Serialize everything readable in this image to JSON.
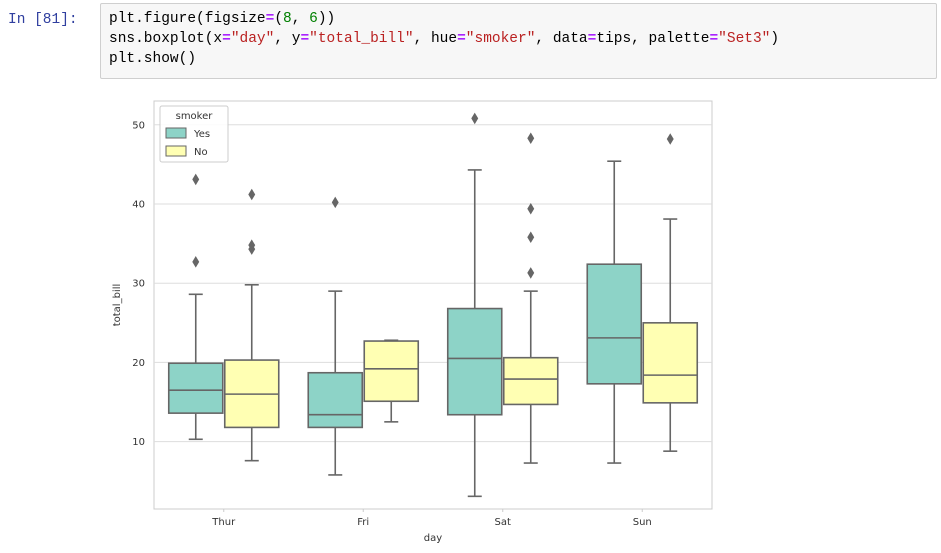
{
  "cell": {
    "prompt": "In [81]:",
    "lines": [
      [
        {
          "t": "plt.figure(figsize",
          "c": "var"
        },
        {
          "t": "=",
          "c": "op"
        },
        {
          "t": "(",
          "c": "punc"
        },
        {
          "t": "8",
          "c": "num"
        },
        {
          "t": ", ",
          "c": "punc"
        },
        {
          "t": "6",
          "c": "num"
        },
        {
          "t": "))",
          "c": "punc"
        }
      ],
      [
        {
          "t": "sns.boxplot(x",
          "c": "var"
        },
        {
          "t": "=",
          "c": "op"
        },
        {
          "t": "\"day\"",
          "c": "str"
        },
        {
          "t": ", y",
          "c": "var"
        },
        {
          "t": "=",
          "c": "op"
        },
        {
          "t": "\"total_bill\"",
          "c": "str"
        },
        {
          "t": ", hue",
          "c": "var"
        },
        {
          "t": "=",
          "c": "op"
        },
        {
          "t": "\"smoker\"",
          "c": "str"
        },
        {
          "t": ", data",
          "c": "var"
        },
        {
          "t": "=",
          "c": "op"
        },
        {
          "t": "tips, palette",
          "c": "var"
        },
        {
          "t": "=",
          "c": "op"
        },
        {
          "t": "\"Set3\"",
          "c": "str"
        },
        {
          "t": ")",
          "c": "punc"
        }
      ],
      [
        {
          "t": "plt.show()",
          "c": "var"
        }
      ]
    ]
  },
  "chart_data": {
    "type": "boxplot",
    "xlabel": "day",
    "ylabel": "total_bill",
    "categories": [
      "Thur",
      "Fri",
      "Sat",
      "Sun"
    ],
    "yticks": [
      10,
      20,
      30,
      40,
      50
    ],
    "ylim": [
      1.5,
      53
    ],
    "grid": true,
    "legend": {
      "title": "smoker",
      "placement": "top-left"
    },
    "series": [
      {
        "name": "Yes",
        "color": "#8dd3c7",
        "boxes": [
          {
            "whisker_low": 10.3,
            "q1": 13.6,
            "median": 16.5,
            "q3": 19.9,
            "whisker_high": 28.6,
            "outliers": [
              32.7,
              43.1
            ]
          },
          {
            "whisker_low": 5.8,
            "q1": 11.8,
            "median": 13.4,
            "q3": 18.7,
            "whisker_high": 29.0,
            "outliers": [
              40.2
            ]
          },
          {
            "whisker_low": 3.1,
            "q1": 13.4,
            "median": 20.5,
            "q3": 26.8,
            "whisker_high": 44.3,
            "outliers": [
              50.8
            ]
          },
          {
            "whisker_low": 7.3,
            "q1": 17.3,
            "median": 23.1,
            "q3": 32.4,
            "whisker_high": 45.4,
            "outliers": []
          }
        ]
      },
      {
        "name": "No",
        "color": "#ffffb3",
        "boxes": [
          {
            "whisker_low": 7.6,
            "q1": 11.8,
            "median": 16.0,
            "q3": 20.3,
            "whisker_high": 29.8,
            "outliers": [
              34.3,
              34.8,
              41.2
            ]
          },
          {
            "whisker_low": 12.5,
            "q1": 15.1,
            "median": 19.2,
            "q3": 22.7,
            "whisker_high": 22.8,
            "outliers": []
          },
          {
            "whisker_low": 7.3,
            "q1": 14.7,
            "median": 17.9,
            "q3": 20.6,
            "whisker_high": 29.0,
            "outliers": [
              31.3,
              35.8,
              39.4,
              48.3
            ]
          },
          {
            "whisker_low": 8.8,
            "q1": 14.9,
            "median": 18.4,
            "q3": 25.0,
            "whisker_high": 38.1,
            "outliers": [
              48.2
            ]
          }
        ]
      }
    ]
  }
}
